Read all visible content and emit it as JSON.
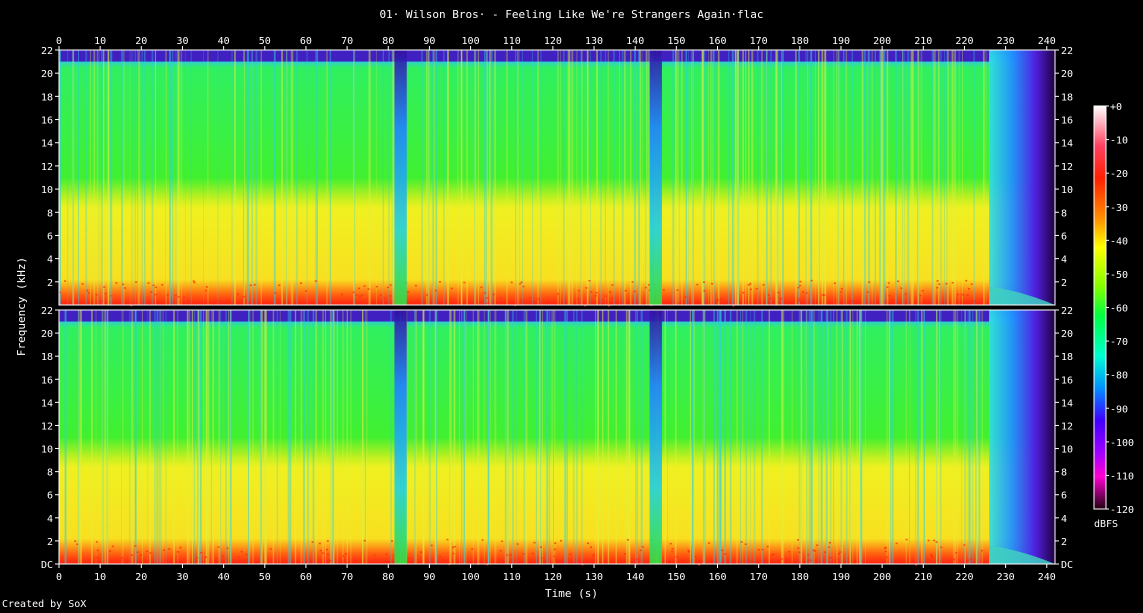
{
  "chart_data": {
    "type": "heatmap",
    "title": "01· Wilson Bros· - Feeling Like We're Strangers Again·flac",
    "xlabel": "Time (s)",
    "ylabel": "Frequency (kHz)",
    "xlim": [
      0,
      242
    ],
    "ylim": [
      0,
      22
    ],
    "x_ticks": [
      "0",
      "10",
      "20",
      "30",
      "40",
      "50",
      "60",
      "70",
      "80",
      "90",
      "100",
      "110",
      "120",
      "130",
      "140",
      "150",
      "160",
      "170",
      "180",
      "190",
      "200",
      "210",
      "220",
      "230",
      "240"
    ],
    "y_ticks_top": [
      "2",
      "4",
      "6",
      "8",
      "10",
      "12",
      "14",
      "16",
      "18",
      "20",
      "22"
    ],
    "y_ticks_bottom": [
      "DC",
      "2",
      "4",
      "6",
      "8",
      "10",
      "12",
      "14",
      "16",
      "18",
      "20",
      "22"
    ],
    "channels": 2,
    "colorbar": {
      "unit": "dBFS",
      "range": [
        -120,
        0
      ],
      "ticks": [
        "+0",
        "-10",
        "-20",
        "-30",
        "-40",
        "-50",
        "-60",
        "-70",
        "-80",
        "-90",
        "-100",
        "-110",
        "-120"
      ]
    },
    "features": {
      "dips_s": [
        83,
        145
      ],
      "fade_out_start_s": 226,
      "fade_out_end_s": 242
    }
  },
  "footer": {
    "created_by": "Created by SoX"
  }
}
